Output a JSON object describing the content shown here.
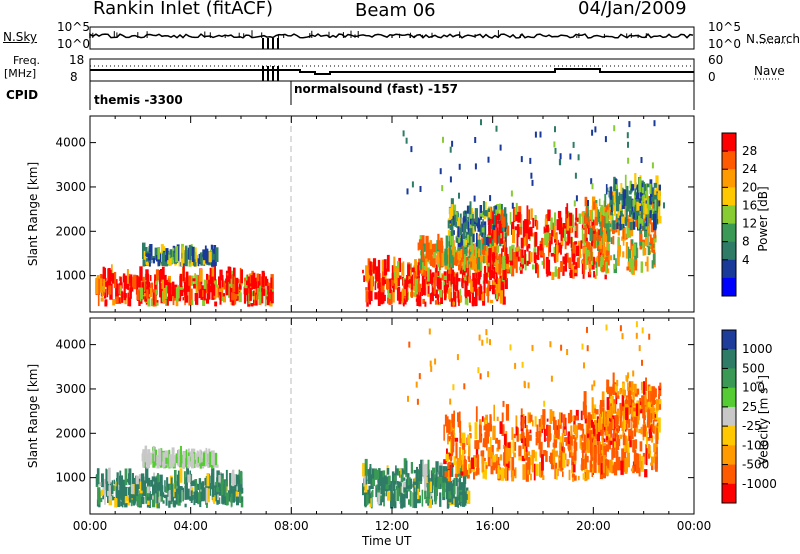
{
  "header": {
    "station": "Rankin Inlet (fitACF)",
    "beam": "Beam 06",
    "date": "04/Jan/2009"
  },
  "top_panel": {
    "left_labels": {
      "nsky": "N.Sky",
      "freq_top": "Freq.",
      "freq_unit": "[MHz]",
      "cpid": "CPID"
    },
    "right_labels": {
      "nsearch": "N.Search",
      "nave": "Nave"
    },
    "nsky_ticks": [
      "10^5",
      "10^0"
    ],
    "nsearch_ticks": [
      "10^5",
      "10^0"
    ],
    "freq_ticks": [
      "18",
      "8"
    ],
    "nave_ticks": [
      "60",
      "0"
    ],
    "cpid_segments": [
      {
        "label": "themis -3300",
        "start_hour": 0
      },
      {
        "label": "normalsound (fast) -157",
        "start_hour": 8
      }
    ]
  },
  "chart_data": [
    {
      "type": "heatmap",
      "name": "power",
      "ylabel": "Slant Range [km]",
      "ylim": [
        180,
        4600
      ],
      "yticks": [
        1000,
        2000,
        3000,
        4000
      ],
      "xlim": [
        0,
        24
      ],
      "colorbar": {
        "label": "Power [dB]",
        "ticks": [
          "28",
          "24",
          "20",
          "16",
          "12",
          "8",
          "4"
        ],
        "colors": [
          "#ff0000",
          "#ff5a00",
          "#ff9a00",
          "#ffc800",
          "#88cc33",
          "#3a9a55",
          "#2e7c66",
          "#1a3a9a",
          "#0000ff"
        ]
      },
      "regions": [
        {
          "t0": 0.2,
          "t1": 6.0,
          "r0": 300,
          "r1": 900,
          "level": "high"
        },
        {
          "t0": 2.0,
          "t1": 5.0,
          "r0": 1200,
          "r1": 1380,
          "level": "low"
        },
        {
          "t0": 6.1,
          "t1": 7.2,
          "r0": 300,
          "r1": 800,
          "level": "high"
        },
        {
          "t0": 10.8,
          "t1": 16.5,
          "r0": 300,
          "r1": 1100,
          "level": "high"
        },
        {
          "t0": 13.0,
          "t1": 16.2,
          "r0": 1100,
          "r1": 1600,
          "level": "mid"
        },
        {
          "t0": 14.2,
          "t1": 16.5,
          "r0": 1600,
          "r1": 2400,
          "level": "low"
        },
        {
          "t0": 15.8,
          "t1": 20.6,
          "r0": 900,
          "r1": 2300,
          "level": "high"
        },
        {
          "t0": 19.5,
          "t1": 22.5,
          "r0": 1000,
          "r1": 2600,
          "level": "mid"
        },
        {
          "t0": 20.5,
          "t1": 22.6,
          "r0": 2000,
          "r1": 3000,
          "level": "low"
        }
      ]
    },
    {
      "type": "heatmap",
      "name": "velocity",
      "ylabel": "Slant Range [km]",
      "ylim": [
        180,
        4600
      ],
      "yticks": [
        1000,
        2000,
        3000,
        4000
      ],
      "xlim": [
        0,
        24
      ],
      "xticks": [
        "00:00",
        "04:00",
        "08:00",
        "12:00",
        "16:00",
        "20:00",
        "00:00"
      ],
      "xlabel": "Time UT",
      "colorbar": {
        "label": "Velocity [m s",
        "label_sup": "-1",
        "label_end": "]",
        "ticks": [
          "1000",
          "500",
          "100",
          "25",
          "-25",
          "-100",
          "-500",
          "-1000"
        ],
        "colors": [
          "#1e3c9a",
          "#2e7c66",
          "#3a9a55",
          "#55cc33",
          "#c8c8c8",
          "#ffc800",
          "#ff9a00",
          "#ff5a00",
          "#ff0000"
        ]
      },
      "regions": [
        {
          "t0": 0.2,
          "t1": 6.0,
          "r0": 300,
          "r1": 900,
          "level": "green"
        },
        {
          "t0": 2.0,
          "t1": 5.0,
          "r0": 1200,
          "r1": 1380,
          "level": "grey"
        },
        {
          "t0": 10.8,
          "t1": 15.0,
          "r0": 300,
          "r1": 1100,
          "level": "green"
        },
        {
          "t0": 14.0,
          "t1": 20.6,
          "r0": 900,
          "r1": 2300,
          "level": "orange"
        },
        {
          "t0": 19.5,
          "t1": 22.5,
          "r0": 1000,
          "r1": 2600,
          "level": "orange"
        },
        {
          "t0": 20.5,
          "t1": 22.6,
          "r0": 2000,
          "r1": 3000,
          "level": "orange"
        }
      ]
    }
  ]
}
